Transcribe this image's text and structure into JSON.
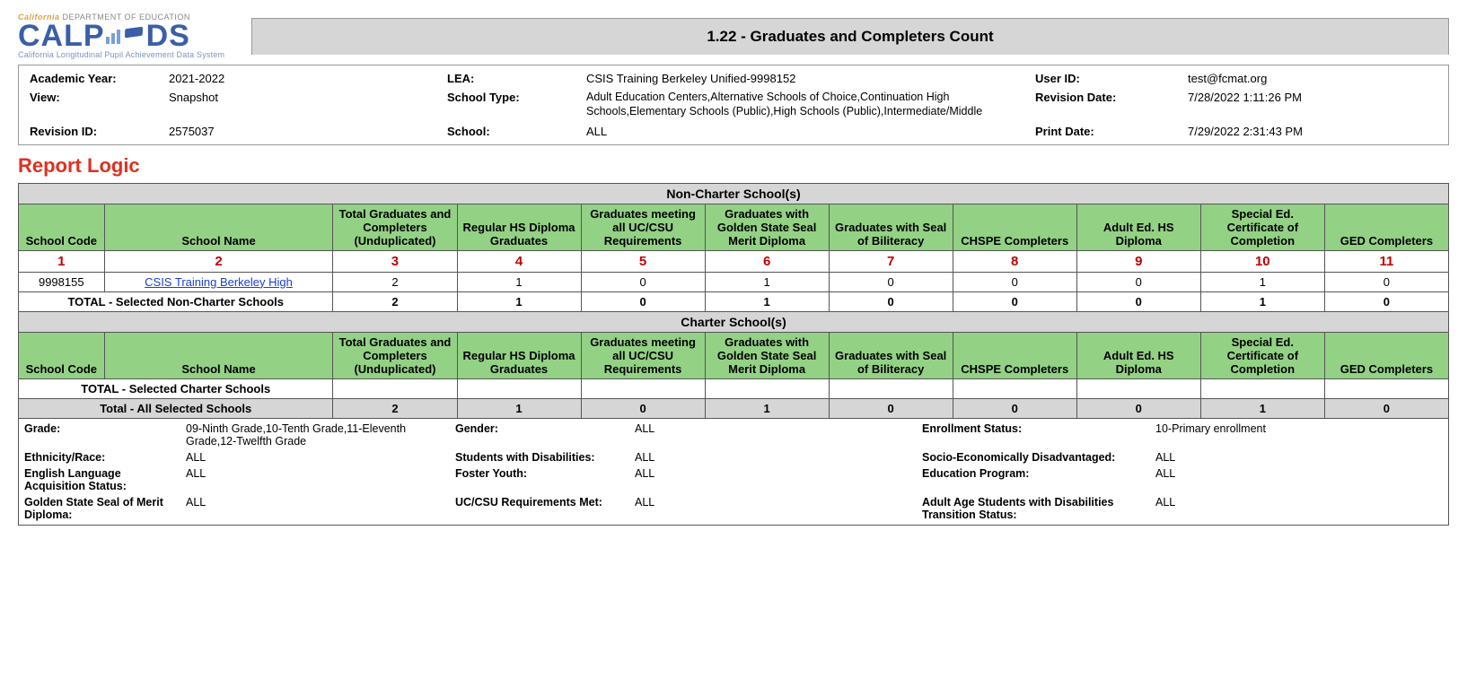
{
  "header": {
    "logo_top_prefix": "California",
    "logo_top_rest": " DEPARTMENT OF EDUCATION",
    "logo_main_left": "CALP",
    "logo_main_right": "DS",
    "logo_sub": "California Longitudinal Pupil Achievement Data System",
    "title": "1.22 - Graduates and Completers Count"
  },
  "meta": {
    "labels": {
      "academic_year": "Academic Year:",
      "view": "View:",
      "revision_id": "Revision ID:",
      "lea": "LEA:",
      "school_type": "School Type:",
      "school": "School:",
      "user_id": "User ID:",
      "revision_date": "Revision Date:",
      "print_date": "Print Date:"
    },
    "values": {
      "academic_year": "2021-2022",
      "view": "Snapshot",
      "revision_id": "2575037",
      "lea": "CSIS Training Berkeley Unified-9998152",
      "school_type": "Adult Education Centers,Alternative Schools of Choice,Continuation High Schools,Elementary Schools (Public),High Schools (Public),Intermediate/Middle",
      "school": "ALL",
      "user_id": "test@fcmat.org",
      "revision_date": "7/28/2022 1:11:26 PM",
      "print_date": "7/29/2022 2:31:43 PM"
    }
  },
  "report_logic_label": "Report Logic",
  "columns": [
    "School Code",
    "School Name",
    "Total Graduates and Completers (Unduplicated)",
    "Regular HS Diploma Graduates",
    "Graduates meeting all UC/CSU Requirements",
    "Graduates with Golden State Seal Merit Diploma",
    "Graduates with Seal of Biliteracy",
    "CHSPE Completers",
    "Adult Ed. HS Diploma",
    "Special Ed. Certificate of Completion",
    "GED Completers"
  ],
  "section_noncharter": "Non-Charter School(s)",
  "section_charter": "Charter School(s)",
  "red_numbers": [
    "1",
    "2",
    "3",
    "4",
    "5",
    "6",
    "7",
    "8",
    "9",
    "10",
    "11"
  ],
  "noncharter_rows": [
    {
      "code": "9998155",
      "name": "CSIS Training Berkeley High",
      "link": true,
      "vals": [
        "2",
        "1",
        "0",
        "1",
        "0",
        "0",
        "0",
        "1",
        "0"
      ]
    }
  ],
  "noncharter_total_label": "TOTAL - Selected Non-Charter Schools",
  "noncharter_total_vals": [
    "2",
    "1",
    "0",
    "1",
    "0",
    "0",
    "0",
    "1",
    "0"
  ],
  "charter_total_label": "TOTAL - Selected Charter Schools",
  "charter_total_vals": [
    "",
    "",
    "",
    "",
    "",
    "",
    "",
    "",
    ""
  ],
  "grand_total_label": "Total - All Selected Schools",
  "grand_total_vals": [
    "2",
    "1",
    "0",
    "1",
    "0",
    "0",
    "0",
    "1",
    "0"
  ],
  "filters": {
    "grade_lbl": "Grade:",
    "grade_val": "09-Ninth Grade,10-Tenth Grade,11-Eleventh Grade,12-Twelfth Grade",
    "ethnicity_lbl": "Ethnicity/Race:",
    "ethnicity_val": "ALL",
    "ela_lbl": "English Language Acquisition Status:",
    "ela_val": "ALL",
    "gssm_lbl": "Golden State Seal of Merit Diploma:",
    "gssm_val": "ALL",
    "gender_lbl": "Gender:",
    "gender_val": "ALL",
    "swd_lbl": "Students with Disabilities:",
    "swd_val": "ALL",
    "foster_lbl": "Foster Youth:",
    "foster_val": "ALL",
    "uccsu_lbl": "UC/CSU Requirements Met:",
    "uccsu_val": "ALL",
    "enroll_lbl": "Enrollment Status:",
    "enroll_val": "10-Primary enrollment",
    "sed_lbl": "Socio-Economically Disadvantaged:",
    "sed_val": "ALL",
    "edprog_lbl": "Education Program:",
    "edprog_val": "ALL",
    "aaswd_lbl": "Adult Age Students with Disabilities Transition Status:",
    "aaswd_val": "ALL"
  },
  "colors": {
    "header_green": "#93d185",
    "section_grey": "#d6d6d6",
    "red_text": "#c00000",
    "link_blue": "#1a3fd6",
    "report_logic_red": "#e03020"
  }
}
